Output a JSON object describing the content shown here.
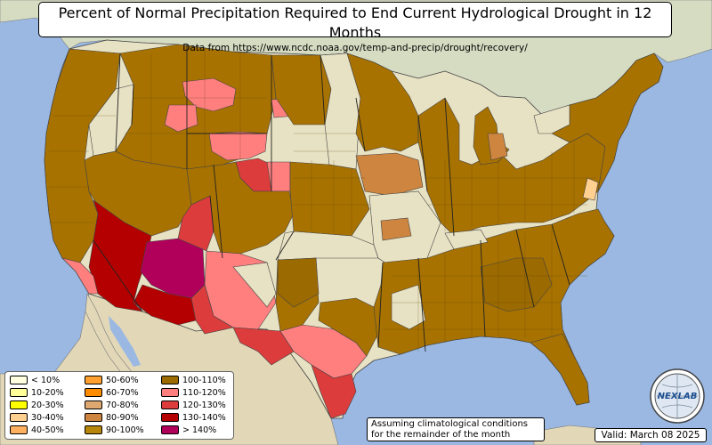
{
  "title": "Percent of Normal Precipitation Required to End Current Hydrological Drought in 12 Months",
  "subtitle": "Data from https://www.ncdc.noaa.gov/temp-and-precip/drought/recovery/",
  "note_line1": "Assuming climatological conditions",
  "note_line2": "for the remainder of the month",
  "valid": "Valid: March 08 2025",
  "logo_text": "NEXLAB",
  "colors": {
    "ocean": "#9ab8e2",
    "land": "#e8e2c4",
    "canada": "#d8dcc4",
    "mexico": "#e4dcbc",
    "borders": "#555555"
  },
  "legend": [
    {
      "label": "< 10%",
      "color": "#ffffe0"
    },
    {
      "label": "10-20%",
      "color": "#ffff99"
    },
    {
      "label": "20-30%",
      "color": "#ffff00"
    },
    {
      "label": "30-40%",
      "color": "#ffd090"
    },
    {
      "label": "40-50%",
      "color": "#ffb060"
    },
    {
      "label": "50-60%",
      "color": "#ffa030"
    },
    {
      "label": "60-70%",
      "color": "#ff8c00"
    },
    {
      "label": "70-80%",
      "color": "#dfa870"
    },
    {
      "label": "80-90%",
      "color": "#cd853f"
    },
    {
      "label": "90-100%",
      "color": "#b8860b"
    },
    {
      "label": "100-110%",
      "color": "#9b6a00"
    },
    {
      "label": "110-120%",
      "color": "#ff7f7f"
    },
    {
      "label": "120-130%",
      "color": "#dc3c3c"
    },
    {
      "label": "130-140%",
      "color": "#b40000"
    },
    {
      "label": "> 140%",
      "color": "#b0005a"
    }
  ]
}
